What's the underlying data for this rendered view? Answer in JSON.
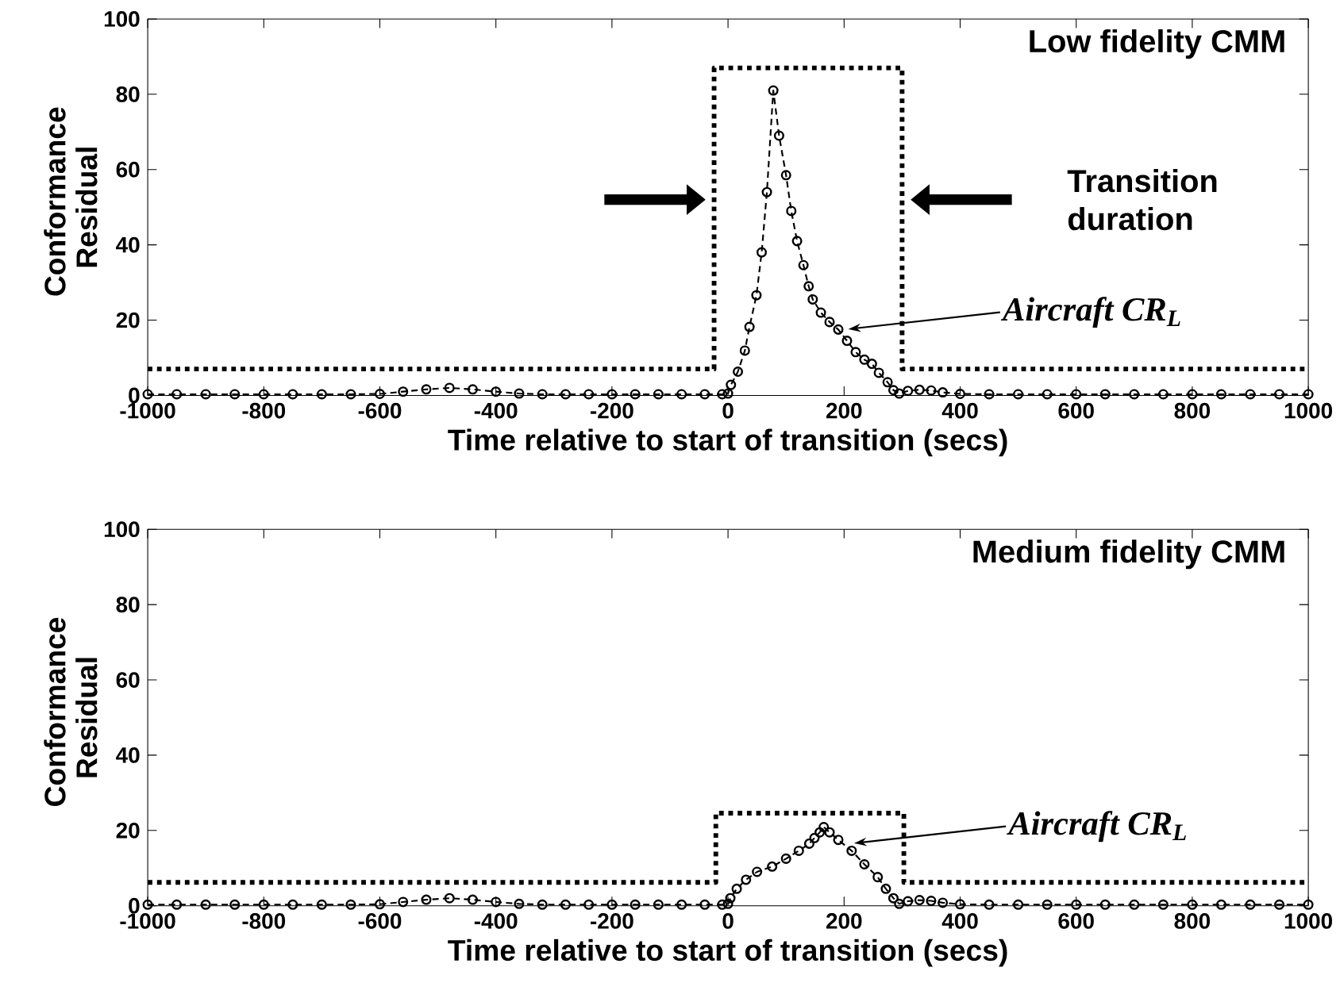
{
  "chart_data": [
    {
      "type": "line",
      "title": "Low fidelity CMM",
      "xlabel": "Time relative to start of transition (secs)",
      "ylabel": "Conformance Residual",
      "xlim": [
        -1000,
        1000
      ],
      "ylim": [
        0,
        100
      ],
      "xticks": [
        -1000,
        -800,
        -600,
        -400,
        -200,
        0,
        200,
        400,
        600,
        800,
        1000
      ],
      "yticks": [
        0,
        20,
        40,
        60,
        80,
        100
      ],
      "series": [
        {
          "color": "#000000",
          "line_style": "dotted",
          "marker": "none",
          "x": [
            -1000,
            -24,
            -24,
            300,
            300,
            1000
          ],
          "values": [
            7,
            7,
            87,
            87,
            7,
            7
          ]
        },
        {
          "color": "#000000",
          "line_style": "dashed",
          "marker": "circle",
          "x": [
            -1000,
            -950,
            -900,
            -850,
            -800,
            -750,
            -700,
            -650,
            -600,
            -560,
            -520,
            -480,
            -440,
            -400,
            -360,
            -320,
            -280,
            -240,
            -200,
            -160,
            -120,
            -80,
            -40,
            -10,
            0,
            5,
            17,
            29,
            37,
            49,
            58,
            67,
            78,
            88,
            100,
            109,
            119,
            130,
            139,
            146,
            160,
            175,
            190,
            205,
            220,
            235,
            248,
            260,
            275,
            285,
            295,
            310,
            330,
            350,
            370,
            400,
            450,
            500,
            550,
            600,
            650,
            700,
            750,
            800,
            850,
            900,
            950,
            1000
          ],
          "values": [
            0.3,
            0.3,
            0.3,
            0.3,
            0.3,
            0.3,
            0.3,
            0.3,
            0.4,
            1,
            1.6,
            2,
            1.6,
            1,
            0.5,
            0.3,
            0.3,
            0.3,
            0.3,
            0.3,
            0.3,
            0.3,
            0.3,
            0.3,
            0.5,
            2.8,
            6.3,
            11.9,
            18.2,
            26.6,
            38,
            54,
            81,
            69,
            58.5,
            49,
            41,
            34.6,
            29,
            25.5,
            22,
            19.5,
            17.5,
            14.5,
            11.5,
            9.5,
            8.4,
            6,
            3.5,
            1.4,
            0.5,
            1.2,
            1.5,
            1.3,
            0.8,
            0.4,
            0.3,
            0.3,
            0.3,
            0.3,
            0.3,
            0.3,
            0.3,
            0.3,
            0.3,
            0.3,
            0.3,
            0.3
          ]
        }
      ],
      "annotations": [
        "Transition duration",
        {
          "text": "Aircraft CR$_{L}$",
          "x": 207,
          "y": 17.6
        }
      ]
    },
    {
      "type": "line",
      "title": "Medium fidelity CMM",
      "xlabel": "Time relative to start of transition (secs)",
      "ylabel": "Conformance Residual",
      "xlim": [
        -1000,
        1000
      ],
      "ylim": [
        0,
        100
      ],
      "xticks": [
        -1000,
        -800,
        -600,
        -400,
        -200,
        0,
        200,
        400,
        600,
        800,
        1000
      ],
      "yticks": [
        0,
        20,
        40,
        60,
        80,
        100
      ],
      "series": [
        {
          "color": "#000000",
          "line_style": "dotted",
          "marker": "none",
          "x": [
            -1000,
            -21,
            -21,
            303,
            303,
            1000
          ],
          "values": [
            6.2,
            6.2,
            24.6,
            24.6,
            6.2,
            6.2
          ]
        },
        {
          "color": "#000000",
          "line_style": "dashed",
          "marker": "circle",
          "x": [
            -1000,
            -950,
            -900,
            -850,
            -800,
            -750,
            -700,
            -650,
            -600,
            -560,
            -520,
            -480,
            -440,
            -400,
            -360,
            -320,
            -280,
            -240,
            -200,
            -160,
            -120,
            -80,
            -40,
            -10,
            0,
            4,
            15,
            31,
            50,
            76,
            100,
            122,
            140,
            149,
            158,
            165,
            175,
            190,
            213,
            235,
            258,
            272,
            285,
            295,
            310,
            330,
            350,
            370,
            400,
            450,
            500,
            550,
            600,
            650,
            700,
            750,
            800,
            850,
            900,
            950,
            1000
          ],
          "values": [
            0.3,
            0.3,
            0.3,
            0.3,
            0.3,
            0.3,
            0.3,
            0.3,
            0.4,
            1,
            1.6,
            2,
            1.6,
            1,
            0.5,
            0.3,
            0.3,
            0.3,
            0.3,
            0.3,
            0.3,
            0.3,
            0.3,
            0.3,
            0.5,
            2,
            4.5,
            6.9,
            9,
            10.4,
            12.5,
            14.6,
            16.5,
            18,
            19.5,
            20.9,
            19.5,
            17.5,
            14.6,
            11,
            7.6,
            4.5,
            2,
            0.5,
            1.2,
            1.5,
            1.3,
            0.8,
            0.4,
            0.3,
            0.3,
            0.3,
            0.3,
            0.3,
            0.3,
            0.3,
            0.3,
            0.3,
            0.3,
            0.3,
            0.3
          ]
        }
      ],
      "annotations": [
        {
          "text": "Aircraft CR$_{L}$",
          "x": 217,
          "y": 16.6
        }
      ]
    }
  ]
}
